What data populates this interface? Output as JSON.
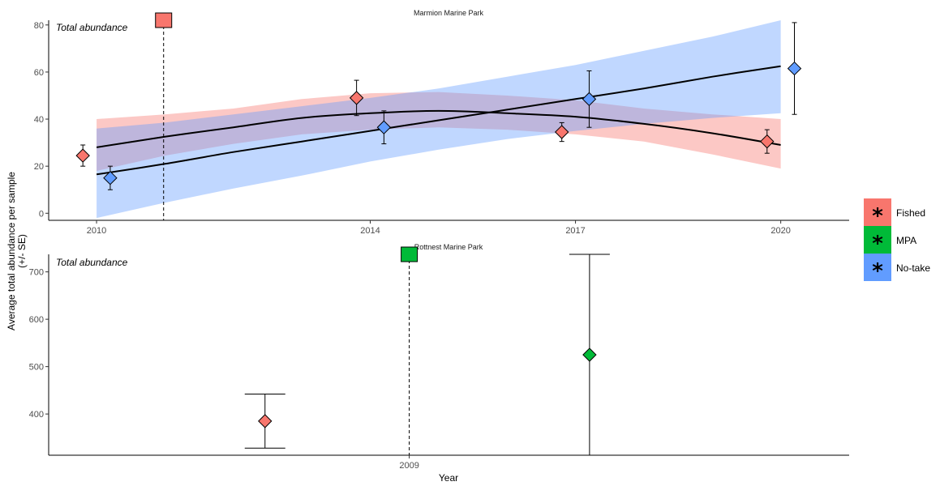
{
  "chart_data": [
    {
      "type": "scatter",
      "panel": "Marmion Marine Park",
      "title": "Marmion Marine Park",
      "annotation": "Total abundance",
      "xlabel": "Year",
      "ylabel": "Average total abundance per sample (+/- SE)",
      "xlim": [
        2009.3,
        2021.0
      ],
      "ylim": [
        -3,
        82
      ],
      "x_ticks": [
        2010,
        2014,
        2017,
        2020
      ],
      "y_ticks": [
        0,
        20,
        40,
        60,
        80
      ],
      "grid": false,
      "mpa_line_x": 2010.98,
      "mpa_marker_group": "Fished",
      "series": [
        {
          "name": "Fished",
          "color": "#F8766D",
          "points": [
            {
              "x": 2009.8,
              "y": 24.5,
              "se": 4.5
            },
            {
              "x": 2013.8,
              "y": 49.0,
              "se": 7.5
            },
            {
              "x": 2016.8,
              "y": 34.5,
              "se": 4.0
            },
            {
              "x": 2019.8,
              "y": 30.5,
              "se": 5.0
            }
          ],
          "trend": [
            {
              "x": 2010.0,
              "y": 28.0,
              "lo": 18.0,
              "hi": 40.0
            },
            {
              "x": 2011.0,
              "y": 32.5,
              "lo": 24.5,
              "hi": 42.0
            },
            {
              "x": 2012.0,
              "y": 36.5,
              "lo": 29.5,
              "hi": 44.5
            },
            {
              "x": 2013.0,
              "y": 40.5,
              "lo": 33.5,
              "hi": 48.5
            },
            {
              "x": 2014.0,
              "y": 42.5,
              "lo": 35.5,
              "hi": 51.0
            },
            {
              "x": 2015.0,
              "y": 43.5,
              "lo": 36.5,
              "hi": 51.5
            },
            {
              "x": 2016.0,
              "y": 42.5,
              "lo": 35.5,
              "hi": 50.0
            },
            {
              "x": 2017.0,
              "y": 41.0,
              "lo": 33.5,
              "hi": 48.0
            },
            {
              "x": 2018.0,
              "y": 38.0,
              "lo": 30.5,
              "hi": 44.5
            },
            {
              "x": 2019.0,
              "y": 34.0,
              "lo": 25.0,
              "hi": 42.0
            },
            {
              "x": 2020.0,
              "y": 29.0,
              "lo": 19.0,
              "hi": 40.0
            }
          ]
        },
        {
          "name": "No-take",
          "color": "#619CFF",
          "points": [
            {
              "x": 2010.2,
              "y": 15.0,
              "se": 5.0
            },
            {
              "x": 2014.2,
              "y": 36.5,
              "se": 7.0
            },
            {
              "x": 2017.2,
              "y": 48.5,
              "se": 12.0
            },
            {
              "x": 2020.2,
              "y": 61.5,
              "se": 19.5
            }
          ],
          "trend": [
            {
              "x": 2010.0,
              "y": 16.5,
              "lo": -2.0,
              "hi": 36.0
            },
            {
              "x": 2011.0,
              "y": 21.0,
              "lo": 4.5,
              "hi": 38.5
            },
            {
              "x": 2012.0,
              "y": 26.0,
              "lo": 10.5,
              "hi": 42.0
            },
            {
              "x": 2013.0,
              "y": 30.5,
              "lo": 16.0,
              "hi": 45.5
            },
            {
              "x": 2014.0,
              "y": 35.0,
              "lo": 22.0,
              "hi": 49.0
            },
            {
              "x": 2015.0,
              "y": 39.5,
              "lo": 27.0,
              "hi": 53.0
            },
            {
              "x": 2016.0,
              "y": 44.0,
              "lo": 31.5,
              "hi": 58.0
            },
            {
              "x": 2017.0,
              "y": 48.5,
              "lo": 35.0,
              "hi": 63.0
            },
            {
              "x": 2018.0,
              "y": 53.0,
              "lo": 38.0,
              "hi": 69.0
            },
            {
              "x": 2019.0,
              "y": 58.0,
              "lo": 40.5,
              "hi": 75.0
            },
            {
              "x": 2020.0,
              "y": 62.5,
              "lo": 42.5,
              "hi": 82.0
            }
          ]
        }
      ]
    },
    {
      "type": "scatter",
      "panel": "Rottnest Marine Park",
      "title": "Rottnest Marine Park",
      "annotation": "Total abundance",
      "xlabel": "Year",
      "xlim": [
        2008.0,
        2010.22
      ],
      "ylim": [
        313,
        737
      ],
      "x_ticks": [
        2009
      ],
      "y_ticks": [
        400,
        500,
        600,
        700
      ],
      "grid": false,
      "mpa_line_x": 2009.0,
      "mpa_marker_group": "MPA",
      "series": [
        {
          "name": "Fished",
          "color": "#F8766D",
          "points": [
            {
              "x": 2008.6,
              "y": 385,
              "se": 57
            }
          ]
        },
        {
          "name": "MPA",
          "color": "#00BA38",
          "points": [
            {
              "x": 2009.5,
              "y": 525,
              "se": 212
            }
          ]
        }
      ]
    }
  ],
  "shared_axis": {
    "xlabel": "Year",
    "ylabel_line1": "Average total abundance per sample",
    "ylabel_line2": "(+/- SE)"
  },
  "legend": {
    "placement": "right",
    "items": [
      {
        "label": "Fished",
        "color": "#F8766D",
        "symbol": "*"
      },
      {
        "label": "MPA",
        "color": "#00BA38",
        "symbol": "*"
      },
      {
        "label": "No-take",
        "color": "#619CFF",
        "symbol": "*"
      }
    ]
  }
}
